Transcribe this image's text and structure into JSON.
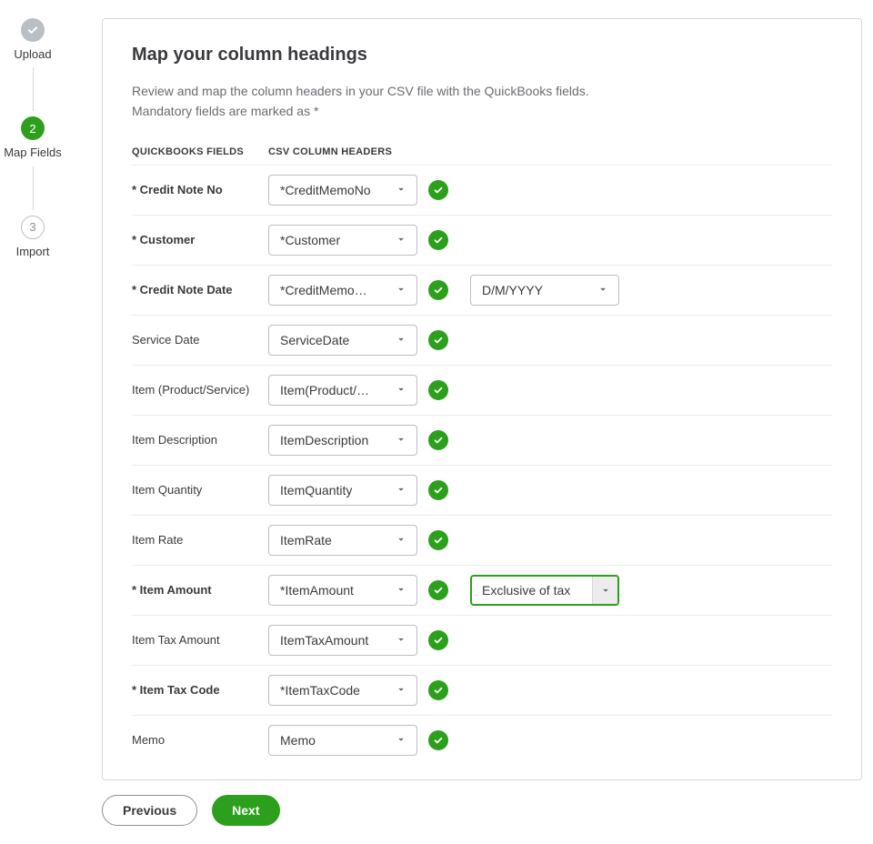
{
  "colors": {
    "accent": "#2ca01c",
    "muted": "#babec5",
    "text": "#393a3d",
    "subtext": "#6b6c72",
    "border": "#d5d8dc",
    "row_border": "#ececec"
  },
  "stepper": {
    "steps": [
      {
        "label": "Upload",
        "state": "done"
      },
      {
        "label": "Map Fields",
        "state": "active",
        "number": "2"
      },
      {
        "label": "Import",
        "state": "todo",
        "number": "3"
      }
    ]
  },
  "heading": "Map your column headings",
  "intro_line1": "Review and map the column headers in your CSV file with the QuickBooks fields.",
  "intro_line2": "Mandatory fields are marked as *",
  "table": {
    "head_qb": "QUICKBOOKS FIELDS",
    "head_csv": "CSV COLUMN HEADERS",
    "rows": [
      {
        "label": "* Credit Note No",
        "mandatory": true,
        "value": "*CreditMemoNo",
        "ok": true
      },
      {
        "label": "* Customer",
        "mandatory": true,
        "value": "*Customer",
        "ok": true
      },
      {
        "label": "* Credit Note Date",
        "mandatory": true,
        "value": "*CreditMemo…",
        "ok": true,
        "extra": {
          "value": "D/M/YYYY"
        }
      },
      {
        "label": "Service Date",
        "mandatory": false,
        "value": "ServiceDate",
        "ok": true
      },
      {
        "label": "Item (Product/Service)",
        "mandatory": false,
        "value": "Item(Product/…",
        "ok": true
      },
      {
        "label": "Item Description",
        "mandatory": false,
        "value": "ItemDescription",
        "ok": true
      },
      {
        "label": "Item Quantity",
        "mandatory": false,
        "value": "ItemQuantity",
        "ok": true
      },
      {
        "label": "Item Rate",
        "mandatory": false,
        "value": "ItemRate",
        "ok": true
      },
      {
        "label": "* Item Amount",
        "mandatory": true,
        "value": "*ItemAmount",
        "ok": true,
        "extra": {
          "value": "Exclusive of tax",
          "focused": true
        }
      },
      {
        "label": "Item Tax Amount",
        "mandatory": false,
        "value": "ItemTaxAmount",
        "ok": true
      },
      {
        "label": "* Item Tax Code",
        "mandatory": true,
        "value": "*ItemTaxCode",
        "ok": true
      },
      {
        "label": "Memo",
        "mandatory": false,
        "value": "Memo",
        "ok": true
      }
    ]
  },
  "buttons": {
    "previous": "Previous",
    "next": "Next"
  }
}
